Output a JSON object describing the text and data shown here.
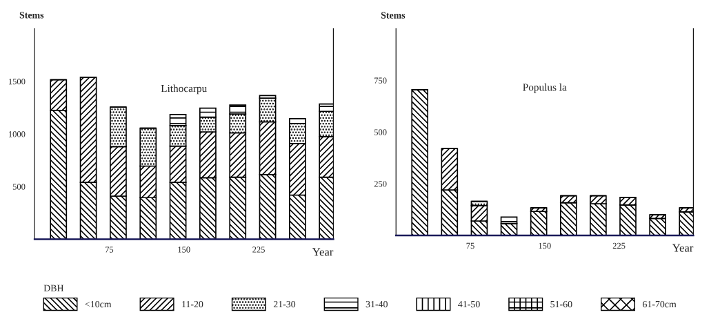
{
  "chart_data": [
    {
      "type": "bar",
      "title": "Lithocarpu",
      "xlabel": "Year",
      "ylabel": "Stems",
      "legend_title": "DBH",
      "stacked": true,
      "legend": "bottom",
      "grid": false,
      "x": [
        24,
        54,
        84,
        114,
        144,
        174,
        204,
        234,
        264,
        294
      ],
      "xlim": [
        0,
        300
      ],
      "xticks": [
        75,
        150,
        225
      ],
      "ylim": [
        0,
        2000
      ],
      "yticks": [
        500,
        1000,
        1500
      ],
      "series": [
        {
          "name": "<10cm",
          "color": "#000000",
          "values": [
            1225,
            540,
            410,
            395,
            540,
            585,
            590,
            615,
            420,
            590
          ]
        },
        {
          "name": "11-20",
          "color": "#000000",
          "values": [
            290,
            1000,
            470,
            300,
            345,
            435,
            420,
            500,
            490,
            385
          ]
        },
        {
          "name": "21-30",
          "color": "#000000",
          "values": [
            0,
            0,
            375,
            360,
            195,
            140,
            180,
            225,
            190,
            240
          ]
        },
        {
          "name": "31-40",
          "color": "#000000",
          "values": [
            0,
            0,
            0,
            0,
            105,
            85,
            85,
            25,
            45,
            70
          ]
        }
      ],
      "annotations": [
        "41-50",
        "51-60",
        "61-70cm"
      ]
    },
    {
      "type": "bar",
      "title": "Populus la",
      "xlabel": "Year",
      "ylabel": "Stems",
      "stacked": true,
      "grid": false,
      "x": [
        24,
        54,
        84,
        114,
        144,
        174,
        204,
        234,
        264,
        294
      ],
      "xlim": [
        0,
        300
      ],
      "xticks": [
        75,
        150,
        225
      ],
      "ylim": [
        0,
        1000
      ],
      "yticks": [
        250,
        500,
        750
      ],
      "series": [
        {
          "color": "#000000",
          "values": [
            705,
            220,
            70,
            58,
            116,
            158,
            153,
            147,
            82,
            114
          ]
        },
        {
          "color": "#000000",
          "values": [
            0,
            200,
            75,
            0,
            17,
            34,
            39,
            37,
            18,
            19
          ]
        },
        {
          "color": "#000000",
          "values": [
            0,
            0,
            20,
            0,
            0,
            0,
            0,
            0,
            0,
            0
          ]
        },
        {
          "color": "#000000",
          "values": [
            0,
            0,
            0,
            31,
            0,
            0,
            0,
            0,
            0,
            0
          ]
        }
      ]
    }
  ]
}
